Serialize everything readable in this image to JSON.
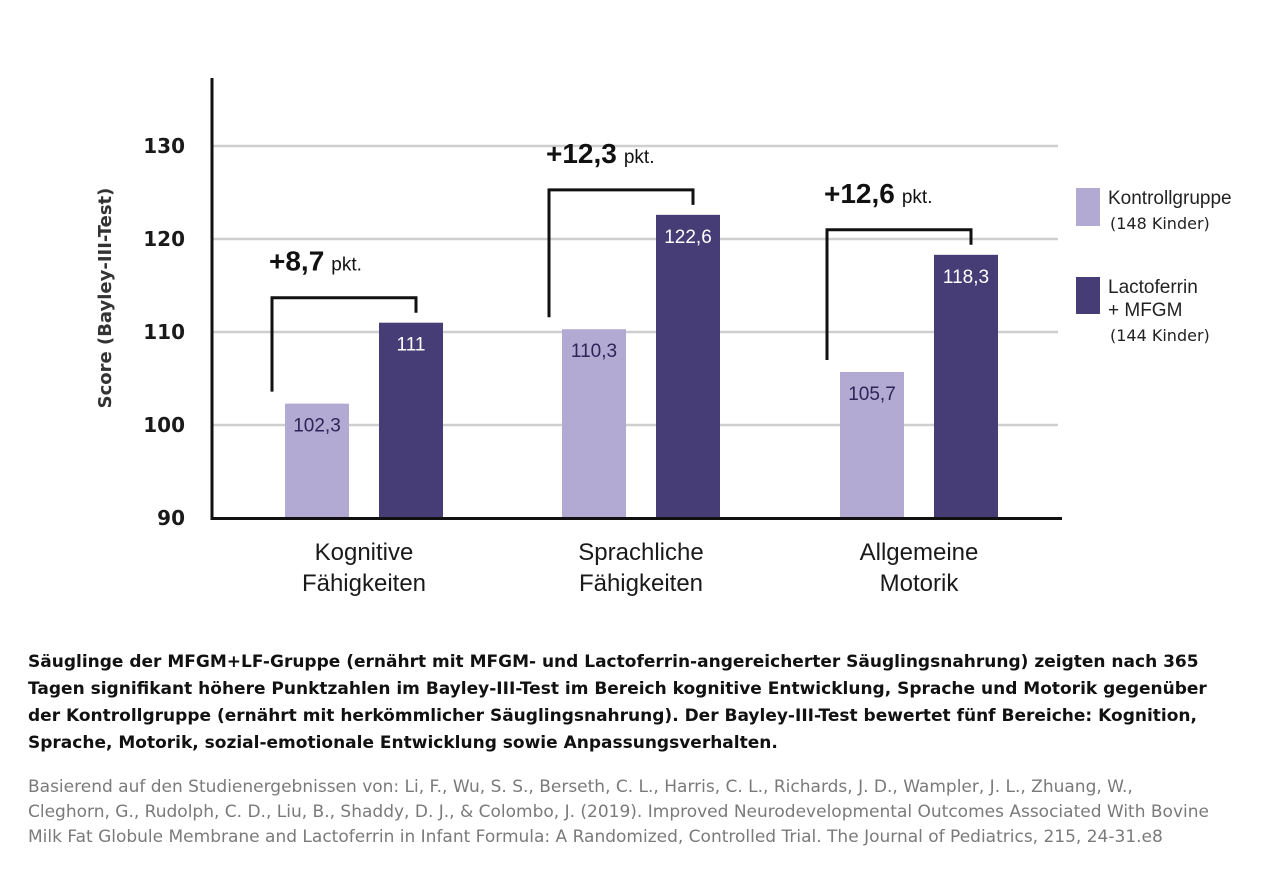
{
  "chart_data": {
    "type": "bar",
    "ylabel": "Score (Bayley-III-Test)",
    "ylim": [
      90,
      130
    ],
    "yticks": [
      "90",
      "100",
      "110",
      "120",
      "130"
    ],
    "grid": true,
    "legend_position": "right",
    "categories": [
      {
        "line1": "Kognitive",
        "line2": "Fähigkeiten"
      },
      {
        "line1": "Sprachliche",
        "line2": "Fähigkeiten"
      },
      {
        "line1": "Allgemeine",
        "line2": "Motorik"
      }
    ],
    "series": [
      {
        "legend_line1": "Kontrollgruppe",
        "legend_line2": "",
        "legend_sub": "(148 Kinder)",
        "color": "#b3aad4",
        "label_color": "#2d2458",
        "values": [
          102.3,
          110.3,
          105.7
        ],
        "labels": [
          "102,3",
          "110,3",
          "105,7"
        ]
      },
      {
        "legend_line1": "Lactoferrin",
        "legend_line2": "+ MFGM",
        "legend_sub": "(144 Kinder)",
        "color": "#463d77",
        "label_color": "#ffffff",
        "values": [
          111,
          122.6,
          118.3
        ],
        "labels": [
          "111",
          "122,6",
          "118,3"
        ]
      }
    ],
    "differences": [
      {
        "value": "+8,7",
        "unit": "pkt."
      },
      {
        "value": "+12,3",
        "unit": "pkt."
      },
      {
        "value": "+12,6",
        "unit": "pkt."
      }
    ]
  },
  "caption": "Säuglinge der MFGM+LF-Gruppe (ernährt mit MFGM- und Lactoferrin-angereicherter Säuglingsnahrung) zeigten nach 365 Tagen signifikant höhere Punktzahlen im Bayley-III-Test im Bereich kognitive Entwicklung, Sprache und Motorik gegenüber der Kontrollgruppe (ernährt mit herkömmlicher Säuglingsnahrung). Der Bayley-III-Test bewertet fünf Bereiche: Kognition, Sprache, Motorik, sozial-emotionale Entwicklung sowie Anpassungsverhalten.",
  "source": "Basierend auf den Studienergebnissen von: Li, F., Wu, S. S., Berseth, C. L., Harris, C. L., Richards, J. D., Wampler, J. L., Zhuang, W., Cleghorn, G., Rudolph, C. D., Liu, B., Shaddy, D. J., & Colombo, J. (2019). Improved Neurodevelopmental Outcomes Associated With Bovine Milk Fat Globule Membrane and Lactoferrin in Infant Formula: A Randomized, Controlled Trial. The Journal of Pediatrics, 215, 24-31.e8"
}
